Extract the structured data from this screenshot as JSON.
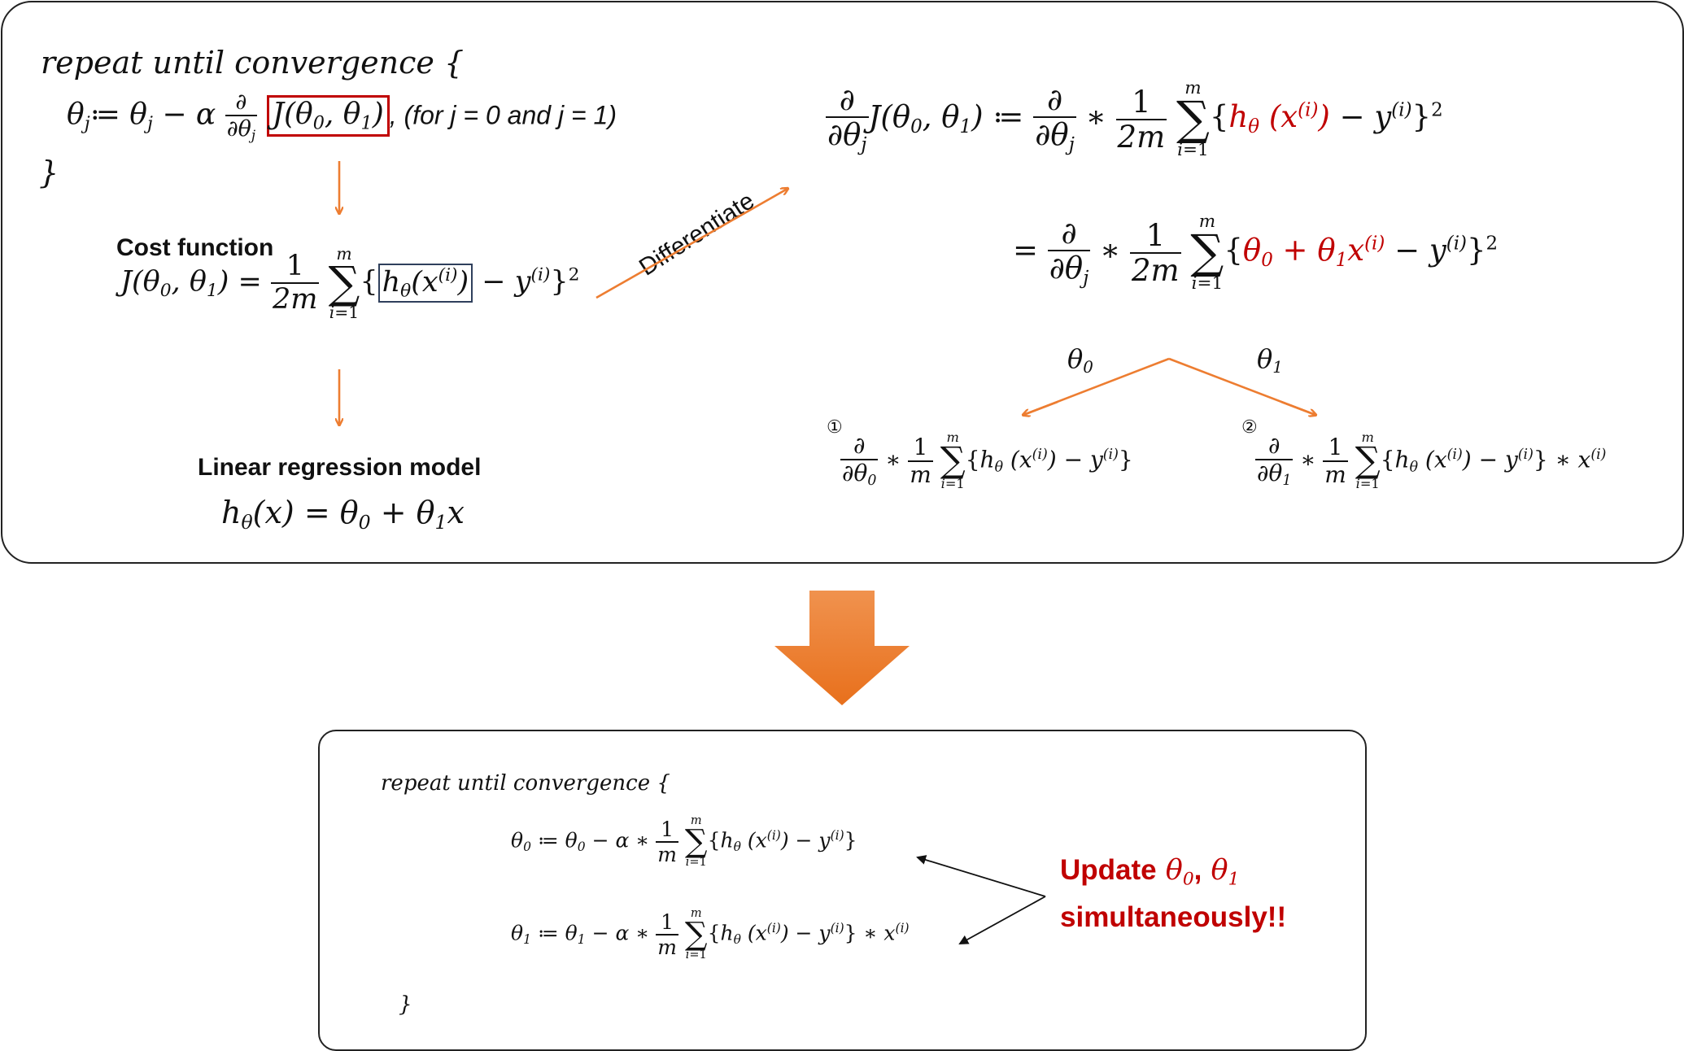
{
  "top": {
    "algo": {
      "line1": "repeat until convergence {",
      "line2_prefix": "θj≔ θj − α",
      "line2_note": ", (for j = 0 and j = 1)",
      "line3": "}"
    },
    "cost": {
      "title": "Cost function"
    },
    "model": {
      "title": "Linear regression model"
    },
    "differentiate_label": "Differentiate",
    "branch_labels": {
      "left": "θ0",
      "right": "θ1"
    },
    "circled": {
      "one": "①",
      "two": "②"
    }
  },
  "bottom": {
    "line1": "repeat until convergence {",
    "close": "}",
    "update_text_1": "Update",
    "update_text_2": "simultaneously!!",
    "update_vars": "θ0, θ1"
  },
  "colors": {
    "arrow_orange": "#ed7d31",
    "red_text": "#c00000",
    "red_box": "#c00000",
    "blue_box": "#2f3f5c"
  }
}
